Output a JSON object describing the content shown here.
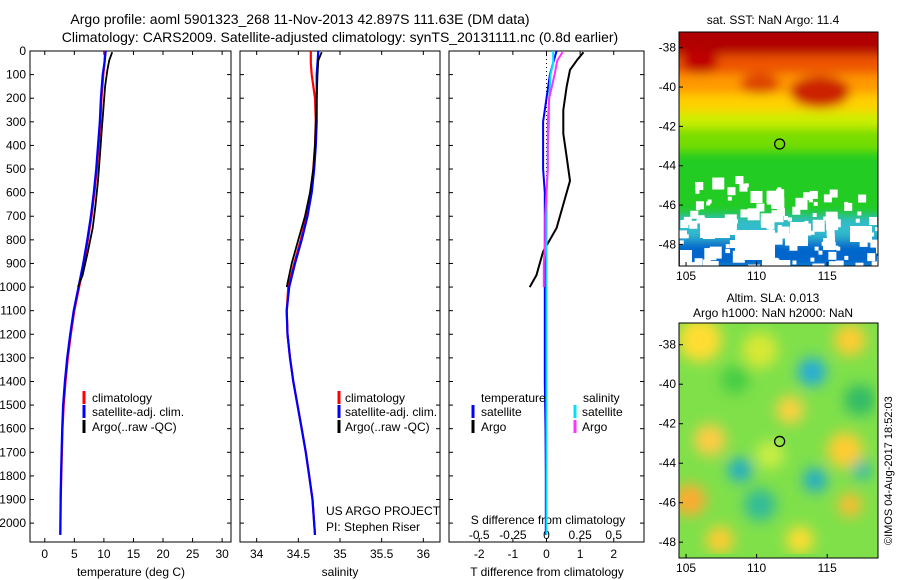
{
  "title": {
    "line1": "Argo profile: aoml 5901323_268 11-Nov-2013 42.897S 111.63E (DM data)",
    "line2": "Climatology: CARS2009. Satellite-adjusted climatology: synTS_20131111.nc (0.8d earlier)"
  },
  "colors": {
    "climatology": "#ff0000",
    "satellite": "#0000ff",
    "argo": "#000000",
    "sal_satellite": "#00e0ff",
    "sal_argo": "#ff33ff"
  },
  "depth_axis": {
    "ticks": [
      0,
      100,
      200,
      300,
      400,
      500,
      600,
      700,
      800,
      900,
      1000,
      1100,
      1200,
      1300,
      1400,
      1500,
      1600,
      1700,
      1800,
      1900,
      2000
    ],
    "ylim": [
      0,
      2080
    ]
  },
  "panel_temperature": {
    "xlabel": "temperature (deg C)",
    "xticks": [
      0,
      5,
      10,
      15,
      20,
      25,
      30
    ],
    "xlim": [
      -2.5,
      31.5
    ],
    "legend": [
      "climatology",
      "satellite-adj. clim.",
      "Argo(..raw -QC)"
    ]
  },
  "panel_salinity": {
    "xlabel": "salinity",
    "xticks": [
      34,
      34.5,
      35,
      35.5,
      36
    ],
    "xlim": [
      33.8,
      36.2
    ],
    "legend": [
      "climatology",
      "satellite-adj. clim.",
      "Argo(..raw -QC)"
    ],
    "note1": "US ARGO PROJECT",
    "note2": "PI: Stephen Riser"
  },
  "panel_difference": {
    "xlabel": "T difference from climatology",
    "xticks": [
      "-2",
      "-1",
      "0",
      "1",
      "2"
    ],
    "xtick_values": [
      -2,
      -1,
      0,
      1,
      2
    ],
    "xlim": [
      -2.9,
      2.9
    ],
    "top_label": "S difference from climatology",
    "top_ticks": [
      "-0.5",
      "-0.25",
      "0",
      "0.25",
      "0.5"
    ],
    "top_tick_values": [
      -0.5,
      -0.25,
      0,
      0.25,
      0.5
    ],
    "legend_temp_head": "temperature",
    "legend_sal_head": "salinity",
    "legend_temp_items": [
      "satellite",
      "Argo"
    ],
    "legend_sal_items": [
      "satellite",
      "Argo"
    ]
  },
  "map_sst": {
    "title": "sat. SST: NaN Argo: 11.4",
    "yticks": [
      "-38",
      "-40",
      "-42",
      "-44",
      "-46",
      "-48"
    ],
    "ytick_values": [
      -38,
      -40,
      -42,
      -44,
      -46,
      -48
    ],
    "xticks": [
      "105",
      "110",
      "115"
    ],
    "xtick_values": [
      105,
      110,
      115
    ],
    "xlim": [
      104.5,
      118.6
    ],
    "ylim": [
      -49.1,
      -37.2
    ],
    "marker": {
      "lon": 111.63,
      "lat": -42.897
    }
  },
  "map_sla": {
    "title1": "Altim. SLA: 0.013",
    "title2": "Argo h1000: NaN h2000: NaN",
    "yticks": [
      "-38",
      "-40",
      "-42",
      "-44",
      "-46",
      "-48"
    ],
    "ytick_values": [
      -38,
      -40,
      -42,
      -44,
      -46,
      -48
    ],
    "xticks": [
      "105",
      "110",
      "115"
    ],
    "xtick_values": [
      105,
      110,
      115
    ],
    "xlim": [
      104.5,
      118.6
    ],
    "ylim": [
      -48.8,
      -36.9
    ],
    "marker": {
      "lon": 111.63,
      "lat": -42.897
    }
  },
  "credit": "©IMOS 04-Aug-2017 18:52:03",
  "chart_data": [
    {
      "type": "line",
      "title": "",
      "xlabel": "temperature (deg C)",
      "ylabel": "",
      "xlim": [
        -2.5,
        31.5
      ],
      "ylim": [
        2080,
        0
      ],
      "series": [
        {
          "name": "climatology",
          "x": [
            10.2,
            10.1,
            9.9,
            9.6,
            9.4,
            9.1,
            8.8,
            8.4,
            7.9,
            7.3,
            6.6,
            5.8,
            5.0,
            4.4,
            3.9,
            3.5,
            3.2,
            3.0,
            2.9,
            2.8,
            2.7,
            2.65
          ],
          "y": [
            0,
            50,
            100,
            200,
            300,
            400,
            500,
            600,
            700,
            800,
            900,
            1000,
            1100,
            1200,
            1300,
            1400,
            1500,
            1600,
            1700,
            1800,
            1900,
            2050
          ]
        },
        {
          "name": "satellite-adj. clim.",
          "x": [
            10.3,
            10.1,
            9.8,
            9.5,
            9.3,
            9.0,
            8.7,
            8.3,
            7.8,
            7.2,
            6.5,
            5.7,
            4.9,
            4.3,
            3.8,
            3.4,
            3.1,
            2.95,
            2.85,
            2.75,
            2.68,
            2.62
          ],
          "y": [
            0,
            50,
            100,
            200,
            300,
            400,
            500,
            600,
            700,
            800,
            900,
            1000,
            1100,
            1200,
            1300,
            1400,
            1500,
            1600,
            1700,
            1800,
            1900,
            2050
          ]
        },
        {
          "name": "Argo(..raw -QC)",
          "x": [
            11.4,
            10.9,
            10.6,
            10.2,
            9.9,
            9.6,
            9.3,
            9.0,
            8.6,
            8.1,
            7.3,
            6.4,
            5.6
          ],
          "y": [
            5,
            40,
            80,
            150,
            250,
            350,
            450,
            550,
            650,
            750,
            850,
            950,
            1000
          ]
        }
      ]
    },
    {
      "type": "line",
      "title": "",
      "xlabel": "salinity",
      "ylabel": "",
      "xlim": [
        33.8,
        36.2
      ],
      "ylim": [
        2080,
        0
      ],
      "series": [
        {
          "name": "climatology",
          "x": [
            34.65,
            34.65,
            34.66,
            34.7,
            34.71,
            34.7,
            34.68,
            34.65,
            34.6,
            34.53,
            34.45,
            34.38,
            34.36,
            34.37,
            34.4,
            34.44,
            34.49,
            34.54,
            34.59,
            34.63,
            34.67,
            34.7
          ],
          "y": [
            0,
            50,
            100,
            200,
            300,
            400,
            500,
            600,
            700,
            800,
            900,
            1000,
            1100,
            1200,
            1300,
            1400,
            1500,
            1600,
            1700,
            1800,
            1900,
            2050
          ]
        },
        {
          "name": "satellite-adj. clim.",
          "x": [
            34.74,
            34.73,
            34.72,
            34.72,
            34.72,
            34.71,
            34.69,
            34.66,
            34.61,
            34.54,
            34.46,
            34.39,
            34.36,
            34.37,
            34.4,
            34.44,
            34.49,
            34.54,
            34.59,
            34.63,
            34.67,
            34.7
          ],
          "y": [
            0,
            50,
            100,
            200,
            300,
            400,
            500,
            600,
            700,
            800,
            900,
            1000,
            1100,
            1200,
            1300,
            1400,
            1500,
            1600,
            1700,
            1800,
            1900,
            2050
          ]
        },
        {
          "name": "Argo(..raw -QC)",
          "x": [
            34.78,
            34.74,
            34.73,
            34.72,
            34.71,
            34.7,
            34.68,
            34.64,
            34.58,
            34.5,
            34.42,
            34.36
          ],
          "y": [
            5,
            40,
            100,
            200,
            300,
            400,
            500,
            600,
            700,
            800,
            900,
            1000
          ]
        }
      ]
    },
    {
      "type": "line",
      "title": "",
      "xlabel": "T difference from climatology",
      "ylabel": "",
      "xlim": [
        -2.9,
        2.9
      ],
      "ylim": [
        2080,
        0
      ],
      "series": [
        {
          "name": "temperature satellite",
          "x": [
            0.3,
            0.2,
            0.1,
            0.0,
            -0.1,
            -0.1,
            -0.1,
            -0.05,
            -0.05,
            -0.05,
            -0.05,
            -0.05,
            -0.05,
            -0.05,
            -0.03,
            -0.02,
            -0.02,
            -0.02
          ],
          "y": [
            0,
            50,
            100,
            200,
            300,
            400,
            500,
            600,
            700,
            800,
            900,
            1000,
            1200,
            1400,
            1600,
            1800,
            1950,
            2050
          ]
        },
        {
          "name": "temperature Argo",
          "x": [
            1.1,
            0.9,
            0.7,
            0.6,
            0.5,
            0.5,
            0.6,
            0.7,
            0.5,
            0.3,
            -0.1,
            -0.3,
            -0.5
          ],
          "y": [
            5,
            40,
            80,
            150,
            250,
            350,
            450,
            550,
            650,
            750,
            850,
            950,
            1000
          ]
        },
        {
          "name": "salinity satellite",
          "x": [
            0.05,
            0.05,
            0.03,
            0.02,
            0.02,
            0.01,
            0.01,
            0.0,
            0.0,
            0.0,
            0.0,
            0.0,
            0.0,
            0.0,
            0.0,
            0.0,
            0.0,
            0.0
          ],
          "y": [
            0,
            50,
            100,
            200,
            300,
            400,
            500,
            600,
            700,
            800,
            900,
            1000,
            1200,
            1400,
            1600,
            1800,
            1950,
            2050
          ]
        },
        {
          "name": "salinity Argo",
          "x": [
            0.12,
            0.08,
            0.06,
            0.02,
            0.01,
            0.01,
            0.01,
            0.0,
            -0.01,
            -0.01,
            -0.02,
            -0.02
          ],
          "y": [
            5,
            40,
            100,
            200,
            300,
            400,
            500,
            600,
            700,
            800,
            900,
            1000
          ]
        }
      ]
    }
  ]
}
